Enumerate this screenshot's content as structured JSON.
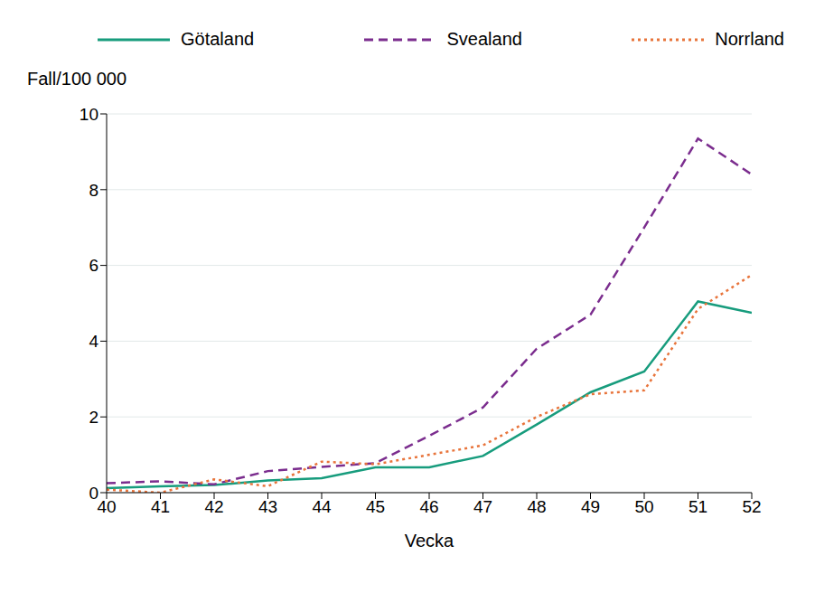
{
  "chart_data": {
    "type": "line",
    "x_label": "Vecka",
    "y_label": "Fall/100 000",
    "x": [
      40,
      41,
      42,
      43,
      44,
      45,
      46,
      47,
      48,
      49,
      50,
      51,
      52
    ],
    "xlim": [
      40,
      52
    ],
    "xticks": [
      40,
      41,
      42,
      43,
      44,
      45,
      46,
      47,
      48,
      49,
      50,
      51,
      52
    ],
    "ylim": [
      0,
      10
    ],
    "yticks": [
      0,
      2,
      4,
      6,
      8,
      10
    ],
    "grid": true,
    "legend": "top",
    "series": [
      {
        "name": "Götaland",
        "color": "#179c7d",
        "line_style": "solid",
        "values": [
          0.12,
          0.17,
          0.2,
          0.32,
          0.38,
          0.67,
          0.67,
          0.97,
          1.8,
          2.65,
          3.2,
          5.05,
          4.75
        ]
      },
      {
        "name": "Svealand",
        "color": "#7b2d8e",
        "line_style": "dashed",
        "values": [
          0.25,
          0.3,
          0.22,
          0.57,
          0.68,
          0.78,
          1.5,
          2.25,
          3.8,
          4.7,
          7.0,
          9.35,
          8.4
        ]
      },
      {
        "name": "Norrland",
        "color": "#e8743b",
        "line_style": "dotted",
        "values": [
          0.08,
          0.0,
          0.35,
          0.17,
          0.82,
          0.75,
          1.0,
          1.25,
          2.0,
          2.6,
          2.7,
          4.85,
          5.75
        ]
      }
    ]
  }
}
